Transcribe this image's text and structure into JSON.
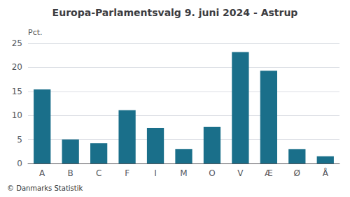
{
  "chart_data": {
    "type": "bar",
    "title": "Europa-Parlamentsvalg 9. juni 2024 - Astrup",
    "categories": [
      "A",
      "B",
      "C",
      "F",
      "I",
      "M",
      "O",
      "V",
      "Æ",
      "Ø",
      "Å"
    ],
    "values": [
      15.4,
      5.0,
      4.2,
      11.1,
      7.4,
      3.0,
      7.6,
      23.2,
      19.3,
      3.0,
      1.5
    ],
    "color": "#1a6f8a",
    "ylabel": "Pct.",
    "footer": "© Danmarks Statistik",
    "ylim": [
      0,
      25
    ],
    "yticks": [
      0,
      5,
      10,
      15,
      20,
      25
    ],
    "grid": true
  }
}
